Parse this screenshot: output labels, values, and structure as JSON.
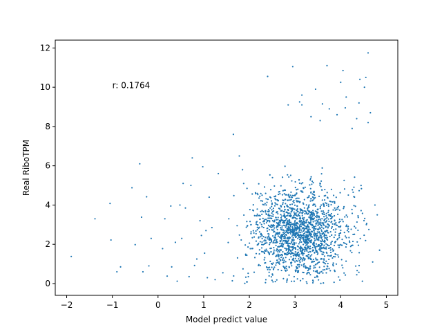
{
  "chart_data": {
    "type": "scatter",
    "title": "",
    "xlabel": "Model predict value",
    "ylabel": "Real RiboTPM",
    "xlim": [
      -2.25,
      5.25
    ],
    "ylim": [
      -0.6,
      12.4
    ],
    "xticks": [
      -2,
      -1,
      0,
      1,
      2,
      3,
      4,
      5
    ],
    "yticks": [
      0,
      2,
      4,
      6,
      8,
      10,
      12
    ],
    "annotation": {
      "text": "r: 0.1764",
      "x": -1.0,
      "y": 10.1
    },
    "grid": false,
    "legend": "none",
    "marker_color": "#1f77b4",
    "points": {
      "x": [
        -1.9,
        -1.38,
        -1.05,
        -1.03,
        -0.9,
        -0.82,
        -0.57,
        -0.5,
        -0.4,
        -0.36,
        -0.33,
        -0.25,
        -0.2,
        -0.15,
        0.1,
        0.15,
        0.2,
        0.28,
        0.3,
        0.38,
        0.42,
        0.48,
        0.52,
        0.55,
        0.6,
        0.68,
        0.72,
        0.75,
        0.8,
        0.85,
        0.92,
        0.95,
        0.98,
        1.02,
        1.05,
        1.08,
        1.12,
        1.18,
        1.25,
        1.32,
        1.42,
        1.55,
        4.05,
        4.1,
        4.55,
        4.6,
        4.4,
        2.95,
        3.1,
        2.4,
        2.85,
        3.7,
        3.15,
        3.15,
        3.35,
        3.55,
        3.75,
        3.92,
        4.0,
        4.12,
        4.25,
        4.35,
        4.42,
        3.45,
        3.6,
        4.52,
        4.6,
        4.65,
        4.75,
        4.8,
        4.85,
        4.7,
        1.78,
        1.65,
        1.85
      ],
      "y": [
        1.38,
        3.3,
        4.08,
        2.22,
        0.6,
        0.85,
        4.88,
        1.98,
        6.1,
        3.38,
        0.6,
        4.42,
        0.9,
        2.3,
        1.78,
        3.3,
        0.38,
        3.95,
        0.85,
        2.1,
        0.12,
        4.0,
        2.3,
        5.1,
        3.85,
        0.35,
        5.0,
        6.4,
        0.92,
        1.25,
        3.2,
        2.45,
        5.95,
        1.55,
        2.7,
        0.3,
        4.4,
        2.85,
        0.2,
        5.6,
        0.55,
        3.3,
        10.85,
        8.95,
        10.5,
        11.75,
        9.2,
        11.05,
        9.25,
        10.55,
        9.1,
        11.1,
        9.6,
        9.1,
        8.5,
        8.3,
        8.9,
        8.6,
        10.25,
        9.5,
        7.9,
        8.4,
        10.4,
        9.9,
        9.15,
        10.0,
        8.2,
        8.7,
        4.0,
        3.5,
        1.7,
        1.1,
        6.5,
        7.6,
        5.8
      ]
    },
    "bulk": {
      "n": 1800,
      "seed": 20240518
    }
  }
}
